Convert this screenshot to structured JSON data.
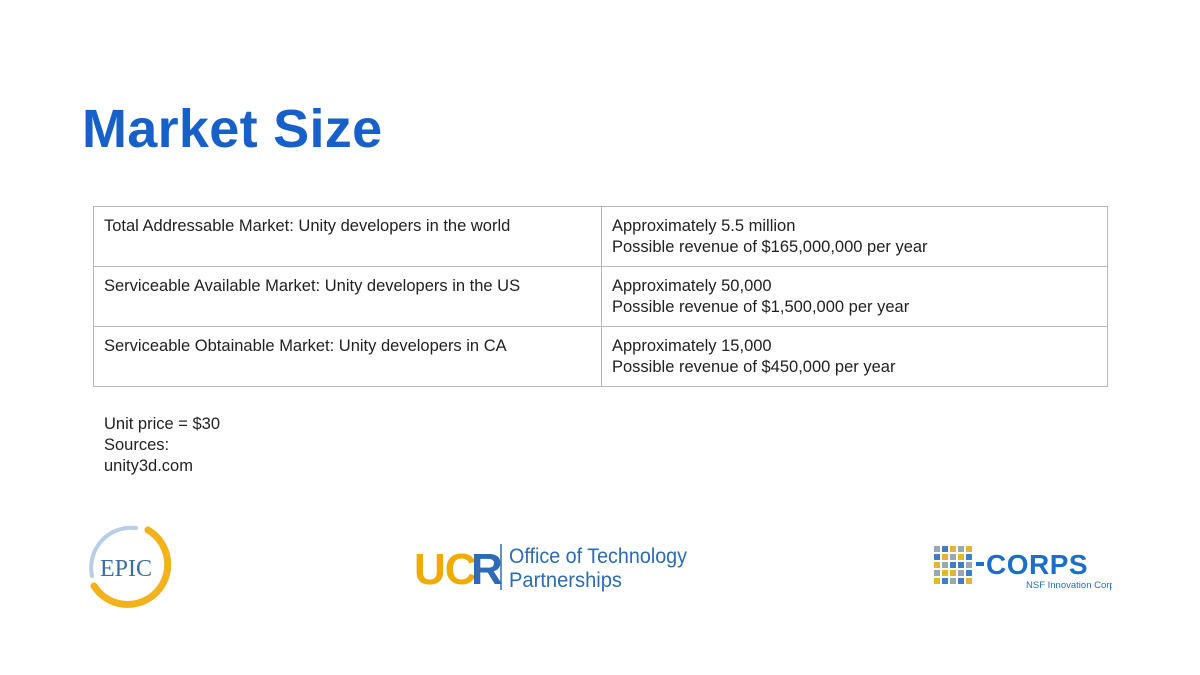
{
  "slide": {
    "title": "Market Size",
    "rows": [
      {
        "market": "Total Addressable Market: Unity developers in the world",
        "count": "Approximately 5.5 million",
        "revenue": "Possible revenue of $165,000,000 per year"
      },
      {
        "market": "Serviceable Available Market: Unity developers in the US",
        "count": "Approximately 50,000",
        "revenue": "Possible revenue of $1,500,000 per year"
      },
      {
        "market": "Serviceable Obtainable Market: Unity developers in CA",
        "count": "Approximately 15,000",
        "revenue": "Possible revenue of $450,000 per year"
      }
    ],
    "notes": {
      "unit_price": "Unit price = $30",
      "sources_label": "Sources:",
      "source": "unity3d.com"
    }
  },
  "logos": {
    "epic": {
      "text": "EPIC",
      "colors": {
        "ring": "#f2b21c",
        "arc": "#b8cde6",
        "text": "#3a6ea8"
      }
    },
    "ucr": {
      "mark": "UCR",
      "line1": "Office of Technology",
      "line2": "Partnerships",
      "colors": {
        "uc": "#f1ab00",
        "r": "#2d6cb5",
        "text": "#2d6cb5"
      }
    },
    "icorps": {
      "mark": "CORPS",
      "subtitle": "NSF Innovation Corps",
      "colors": {
        "mark": "#1a6fc9",
        "grid_gold": "#e6b52d",
        "grid_blue": "#3b7fc4",
        "grid_gray": "#9aa7b5"
      }
    }
  },
  "colors": {
    "title": "#1760c9",
    "border": "#b7b7b7",
    "text": "#222222"
  }
}
